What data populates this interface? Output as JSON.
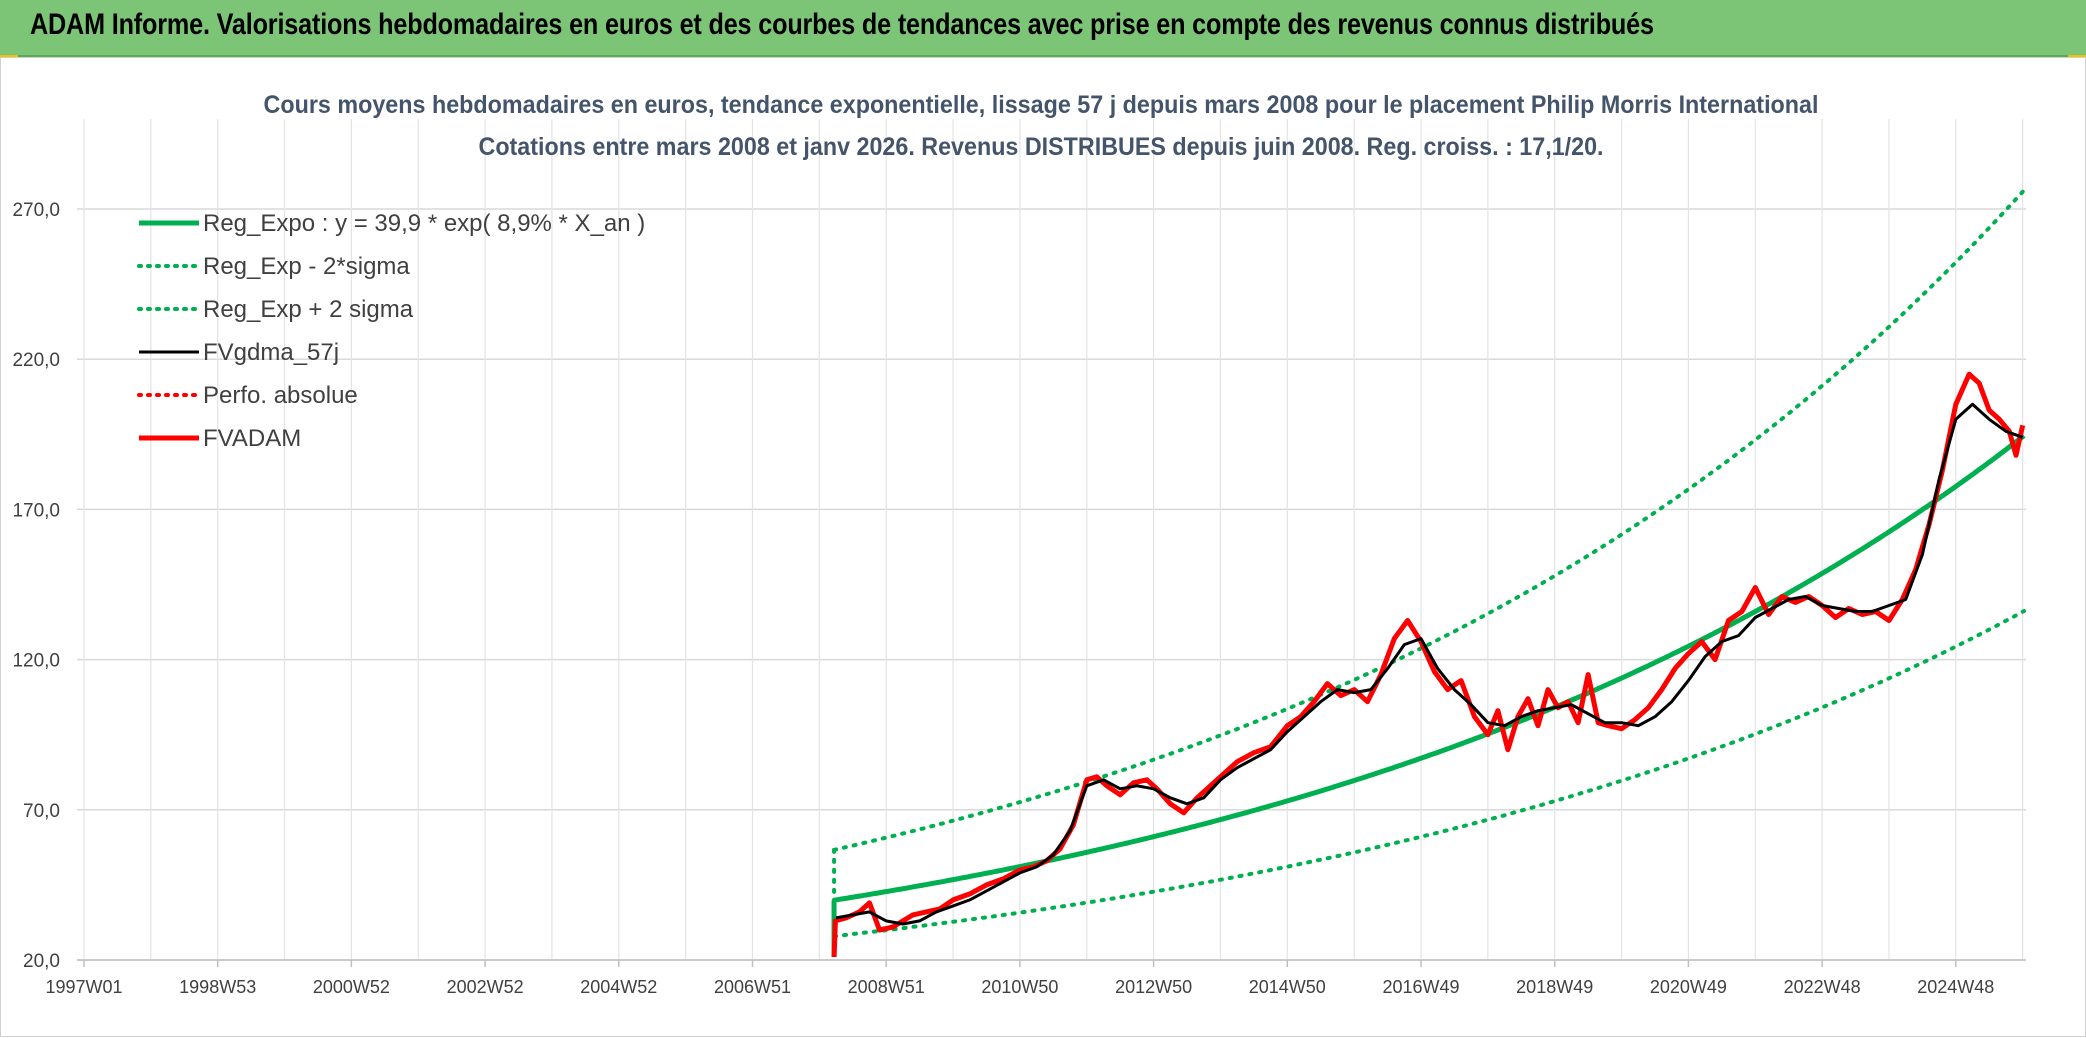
{
  "banner": {
    "title": "ADAM Informe. Valorisations hebdomadaires en euros et des courbes de tendances avec prise en compte des revenus connus distribués"
  },
  "chart_data": {
    "type": "line",
    "title": "Cours moyens hebdomadaires en euros, tendance exponentielle, lissage 57 j depuis mars 2008 pour le placement Philip Morris International",
    "subtitle": "Cotations entre mars 2008 et janv 2026. Revenus DISTRIBUES depuis juin 2008. Reg. croiss. : 17,1/20.",
    "xlabel": "",
    "ylabel": "",
    "x_range_years": [
      1997.0,
      2026.05
    ],
    "ylim": [
      20,
      270
    ],
    "y_ticks": [
      "20,0",
      "70,0",
      "120,0",
      "170,0",
      "220,0",
      "270,0"
    ],
    "y_tick_values": [
      20,
      70,
      120,
      170,
      220,
      270
    ],
    "x_ticks": [
      "1997W01",
      "1998W53",
      "2000W52",
      "2002W52",
      "2004W52",
      "2006W51",
      "2008W51",
      "2010W50",
      "2012W50",
      "2014W50",
      "2016W49",
      "2018W49",
      "2020W49",
      "2022W48",
      "2024W48"
    ],
    "x_tick_years": [
      1997.0,
      1999.0,
      2001.0,
      2003.0,
      2005.0,
      2007.0,
      2009.0,
      2011.0,
      2013.0,
      2015.0,
      2017.0,
      2019.0,
      2021.0,
      2023.0,
      2025.0
    ],
    "grid": true,
    "legend_position": "top-left",
    "regression": {
      "a": 39.9,
      "rate": 0.089,
      "x0_year": 2008.22,
      "x_end_year": 2026.05,
      "sigma_factor_upper": 1.42,
      "sigma_factor_lower": 0.7
    },
    "series": [
      {
        "name": "Reg_Expo : y = 39,9 * exp( 8,9% *  X_an )",
        "color": "#00b050",
        "style": "solid",
        "width": 5
      },
      {
        "name": "Reg_Exp - 2*sigma",
        "color": "#00b050",
        "style": "dotted",
        "width": 4
      },
      {
        "name": "Reg_Exp + 2 sigma",
        "color": "#00b050",
        "style": "dotted",
        "width": 4
      },
      {
        "name": "FVgdma_57j",
        "color": "#000000",
        "style": "solid",
        "width": 3,
        "x": [
          2008.25,
          2008.5,
          2008.75,
          2009.0,
          2009.25,
          2009.5,
          2009.75,
          2010.0,
          2010.25,
          2010.5,
          2010.75,
          2011.0,
          2011.25,
          2011.5,
          2011.75,
          2012.0,
          2012.25,
          2012.5,
          2012.75,
          2013.0,
          2013.25,
          2013.5,
          2013.75,
          2014.0,
          2014.25,
          2014.5,
          2014.75,
          2015.0,
          2015.25,
          2015.5,
          2015.75,
          2016.0,
          2016.25,
          2016.5,
          2016.75,
          2017.0,
          2017.25,
          2017.5,
          2017.75,
          2018.0,
          2018.25,
          2018.5,
          2018.75,
          2019.0,
          2019.25,
          2019.5,
          2019.75,
          2020.0,
          2020.25,
          2020.5,
          2020.75,
          2021.0,
          2021.25,
          2021.5,
          2021.75,
          2022.0,
          2022.25,
          2022.5,
          2022.75,
          2023.0,
          2023.25,
          2023.5,
          2023.75,
          2024.0,
          2024.25,
          2024.5,
          2024.75,
          2025.0,
          2025.25,
          2025.5,
          2025.75,
          2026.0
        ],
        "values": [
          34,
          35,
          36,
          33,
          32,
          33,
          36,
          38,
          40,
          43,
          46,
          49,
          51,
          55,
          63,
          78,
          80,
          77,
          78,
          77,
          74,
          72,
          74,
          80,
          84,
          87,
          90,
          96,
          101,
          106,
          110,
          109,
          110,
          117,
          125,
          127,
          117,
          110,
          105,
          99,
          98,
          101,
          103,
          104,
          105,
          102,
          99,
          99,
          98,
          101,
          106,
          113,
          121,
          126,
          128,
          134,
          137,
          140,
          141,
          138,
          137,
          136,
          136,
          138,
          140,
          155,
          180,
          200,
          205,
          200,
          196,
          194
        ]
      },
      {
        "name": "Perfo. absolue",
        "color": "#ff0000",
        "style": "dotted",
        "width": 3
      },
      {
        "name": "FVADAM",
        "color": "#ff0000",
        "style": "solid",
        "width": 5,
        "x": [
          2008.22,
          2008.24,
          2008.4,
          2008.6,
          2008.75,
          2008.9,
          2009.1,
          2009.25,
          2009.4,
          2009.6,
          2009.8,
          2010.0,
          2010.25,
          2010.5,
          2010.75,
          2011.0,
          2011.2,
          2011.4,
          2011.6,
          2011.8,
          2012.0,
          2012.15,
          2012.3,
          2012.5,
          2012.7,
          2012.9,
          2013.05,
          2013.25,
          2013.45,
          2013.65,
          2013.85,
          2014.0,
          2014.25,
          2014.5,
          2014.75,
          2015.0,
          2015.2,
          2015.4,
          2015.6,
          2015.8,
          2016.0,
          2016.2,
          2016.4,
          2016.6,
          2016.8,
          2017.0,
          2017.2,
          2017.4,
          2017.6,
          2017.8,
          2018.0,
          2018.15,
          2018.3,
          2018.45,
          2018.6,
          2018.75,
          2018.9,
          2019.05,
          2019.2,
          2019.35,
          2019.5,
          2019.65,
          2019.8,
          2020.0,
          2020.2,
          2020.4,
          2020.6,
          2020.8,
          2021.0,
          2021.2,
          2021.4,
          2021.6,
          2021.8,
          2022.0,
          2022.2,
          2022.4,
          2022.6,
          2022.8,
          2023.0,
          2023.2,
          2023.4,
          2023.6,
          2023.8,
          2024.0,
          2024.2,
          2024.4,
          2024.6,
          2024.8,
          2025.0,
          2025.2,
          2025.35,
          2025.5,
          2025.65,
          2025.8,
          2025.9,
          2026.0
        ],
        "values": [
          21,
          33,
          34,
          36,
          39,
          30,
          31,
          33,
          35,
          36,
          37,
          40,
          42,
          45,
          47,
          50,
          51,
          53,
          57,
          65,
          80,
          81,
          78,
          75,
          79,
          80,
          77,
          72,
          69,
          74,
          78,
          81,
          86,
          89,
          91,
          98,
          101,
          106,
          112,
          108,
          110,
          106,
          115,
          127,
          133,
          126,
          116,
          110,
          113,
          101,
          95,
          103,
          90,
          101,
          107,
          98,
          110,
          104,
          106,
          99,
          115,
          99,
          98,
          97,
          100,
          104,
          110,
          117,
          122,
          126,
          120,
          133,
          136,
          144,
          135,
          141,
          139,
          141,
          138,
          134,
          137,
          135,
          136,
          133,
          140,
          150,
          165,
          183,
          205,
          215,
          212,
          203,
          200,
          196,
          188,
          198
        ]
      }
    ]
  }
}
